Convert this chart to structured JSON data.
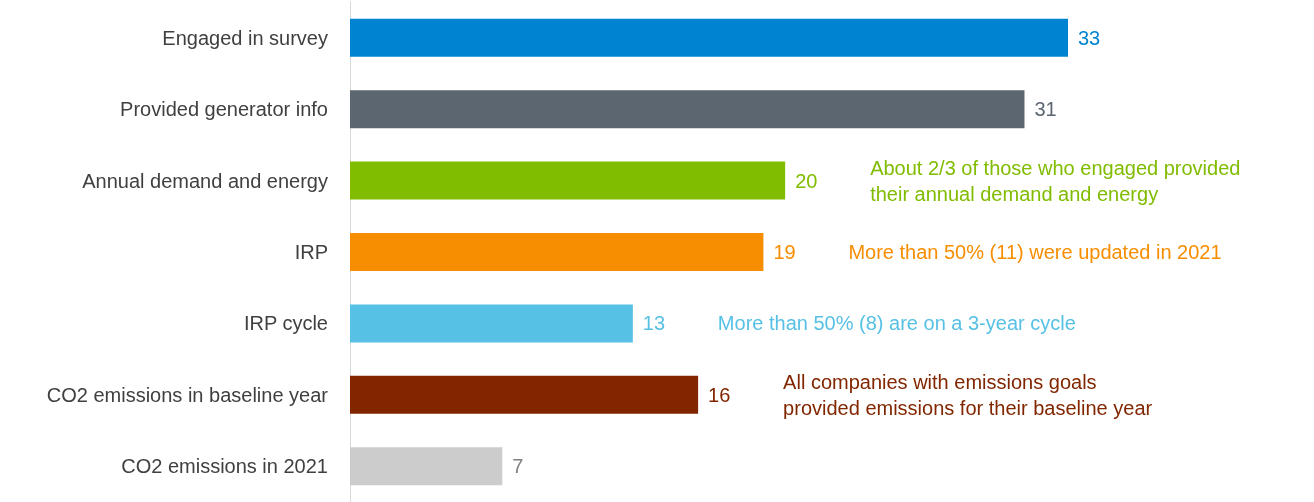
{
  "chart_data": {
    "type": "bar",
    "orientation": "horizontal",
    "categories": [
      "Engaged in survey",
      "Provided generator info",
      "Annual demand and energy",
      "IRP",
      "IRP cycle",
      "CO2 emissions in baseline year",
      "CO2 emissions in 2021"
    ],
    "values": [
      33,
      31,
      20,
      19,
      13,
      16,
      7
    ],
    "colors": [
      "#0084d1",
      "#5c6670",
      "#80bc00",
      "#f78d00",
      "#56c0e5",
      "#822600",
      "#cccccc"
    ],
    "data_labels": true,
    "tick_labels": "y",
    "annotations": [
      "About 2/3 of those who engaged provided\ntheir annual demand and energy",
      "More than 50% (11) were updated in 2021",
      "More than 50% (8) are on a 3-year cycle",
      "All companies with emissions goals\nprovided emissions for their baseline year"
    ]
  }
}
